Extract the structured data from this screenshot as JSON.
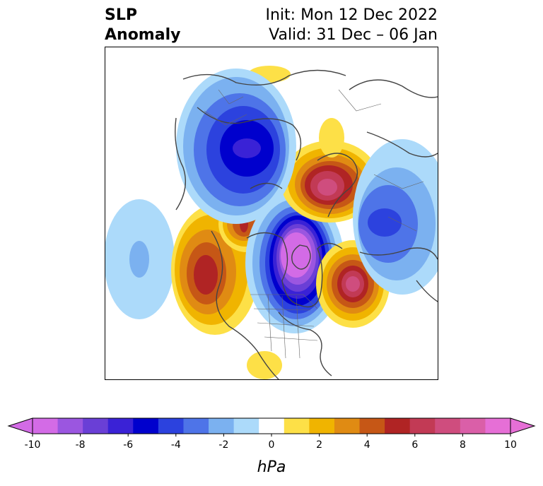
{
  "title": {
    "left_line1": "SLP",
    "left_line2": "Anomaly",
    "init": "Init: Mon 12 Dec 2022",
    "valid": "Valid: 31 Dec – 06 Jan"
  },
  "map": {
    "projection": "polar stereographic (North America / Arctic)",
    "anomaly_centers": [
      {
        "name": "high-alaska-bering",
        "sign": "positive",
        "level_hpa": 6
      },
      {
        "name": "high-north-pacific",
        "sign": "positive",
        "level_hpa": 7
      },
      {
        "name": "high-siberia-arctic",
        "sign": "positive",
        "level_hpa": 8
      },
      {
        "name": "high-north-atlantic",
        "sign": "positive",
        "level_hpa": 8
      },
      {
        "name": "low-central-canada-hudson",
        "sign": "negative",
        "level_hpa": -10
      },
      {
        "name": "low-scandinavia-europe",
        "sign": "negative",
        "level_hpa": -6
      },
      {
        "name": "low-east-asia",
        "sign": "negative",
        "level_hpa": -5
      },
      {
        "name": "low-central-pacific",
        "sign": "negative",
        "level_hpa": -3
      }
    ],
    "colors": {
      "border": "#444444",
      "outline": "#000000"
    }
  },
  "colorbar": {
    "unit": "hPa",
    "ticks": [
      "-10",
      "-8",
      "-6",
      "-4",
      "-2",
      "0",
      "2",
      "4",
      "6",
      "8",
      "10"
    ],
    "extend": "both",
    "colors": [
      "#d36be6",
      "#9b56e0",
      "#6a3fd6",
      "#3a22d6",
      "#0000cd",
      "#2c42de",
      "#4e74e8",
      "#7bb1f0",
      "#acdafa",
      "#ffffff",
      "#fde047",
      "#f0b400",
      "#e08b13",
      "#c65716",
      "#b02424",
      "#c23a55",
      "#cf4d7e",
      "#da5fa8",
      "#e66fd6"
    ]
  }
}
